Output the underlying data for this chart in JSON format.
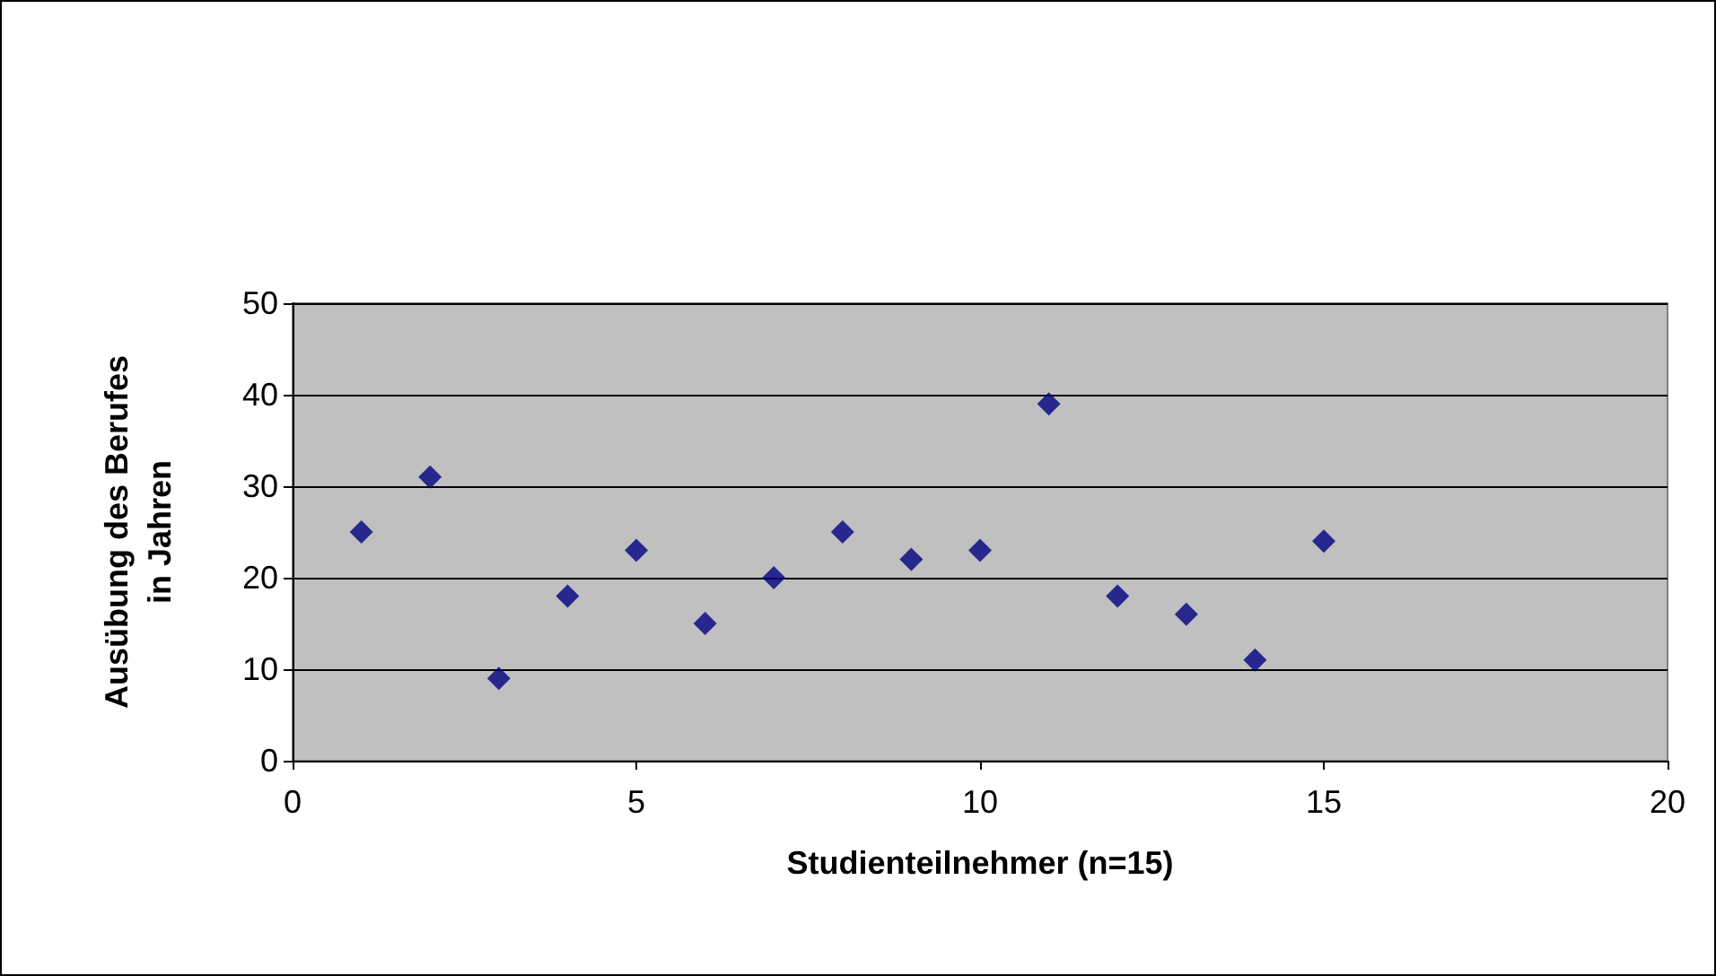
{
  "chart_data": {
    "type": "scatter",
    "xlabel": "Studienteilnehmer (n=15)",
    "ylabel": "Ausübung des Berufes\nin Jahren",
    "x": [
      1,
      2,
      3,
      4,
      5,
      6,
      7,
      8,
      9,
      10,
      11,
      12,
      13,
      14,
      15
    ],
    "series": [
      {
        "color": "#000080",
        "values": [
          25,
          31,
          9,
          18,
          23,
          15,
          20,
          25,
          22,
          23,
          39,
          18,
          16,
          11,
          24
        ]
      }
    ],
    "xlim": [
      0,
      20
    ],
    "xticks": [
      0,
      5,
      10,
      15,
      20
    ],
    "ylim": [
      0,
      50
    ],
    "yticks": [
      0,
      10,
      20,
      30,
      40,
      50
    ],
    "grid": "y",
    "marker": "diamond"
  }
}
